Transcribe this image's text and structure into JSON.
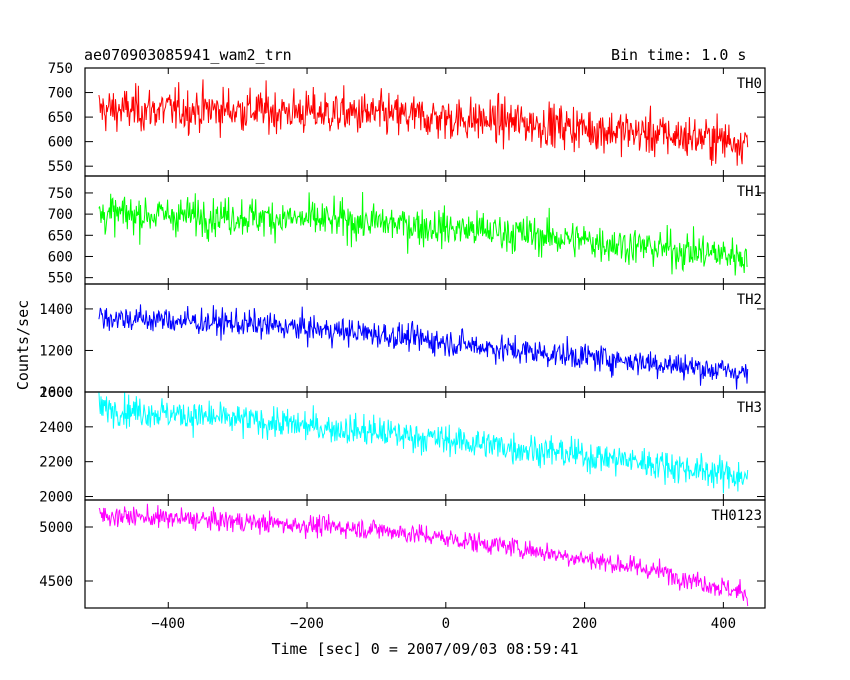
{
  "header": {
    "left_title": "ae070903085941_wam2_trn",
    "right_title": "Bin time: 1.0 s"
  },
  "chart_data": {
    "type": "line",
    "xlabel": "Time [sec] 0 = 2007/09/03 08:59:41",
    "ylabel": "Counts/sec",
    "xlim": [
      -520,
      460
    ],
    "x_ticks": [
      -400,
      -200,
      0,
      200,
      400
    ],
    "x_range": [
      -500,
      435
    ],
    "panels": [
      {
        "name": "TH0",
        "color": "#ff0000",
        "ylim": [
          530,
          750
        ],
        "y_ticks": [
          550,
          600,
          650,
          700,
          750
        ],
        "trend_x": [
          -500,
          -300,
          -100,
          100,
          300,
          435
        ],
        "trend_y": [
          665,
          665,
          655,
          640,
          615,
          600
        ],
        "noise": 38
      },
      {
        "name": "TH1",
        "color": "#00ff00",
        "ylim": [
          535,
          790
        ],
        "y_ticks": [
          550,
          600,
          650,
          700,
          750
        ],
        "trend_x": [
          -500,
          -300,
          -100,
          100,
          300,
          435
        ],
        "trend_y": [
          700,
          695,
          680,
          655,
          620,
          600
        ],
        "noise": 38
      },
      {
        "name": "TH2",
        "color": "#0000ff",
        "ylim": [
          1000,
          1520
        ],
        "y_ticks": [
          1000,
          1200,
          1400
        ],
        "trend_x": [
          -500,
          -300,
          -100,
          100,
          300,
          435
        ],
        "trend_y": [
          1360,
          1330,
          1280,
          1200,
          1140,
          1090
        ],
        "noise": 55
      },
      {
        "name": "TH3",
        "color": "#00ffff",
        "ylim": [
          1980,
          2600
        ],
        "y_ticks": [
          2000,
          2200,
          2400,
          2600
        ],
        "trend_x": [
          -500,
          -300,
          -100,
          100,
          300,
          435
        ],
        "trend_y": [
          2510,
          2440,
          2370,
          2280,
          2190,
          2110
        ],
        "noise": 75
      },
      {
        "name": "TH0123",
        "color": "#ff00ff",
        "ylim": [
          4250,
          5250
        ],
        "y_ticks": [
          4500,
          5000
        ],
        "trend_x": [
          -500,
          -300,
          -100,
          100,
          300,
          435
        ],
        "trend_y": [
          5110,
          5050,
          4980,
          4810,
          4600,
          4380
        ],
        "noise": 80
      }
    ]
  }
}
